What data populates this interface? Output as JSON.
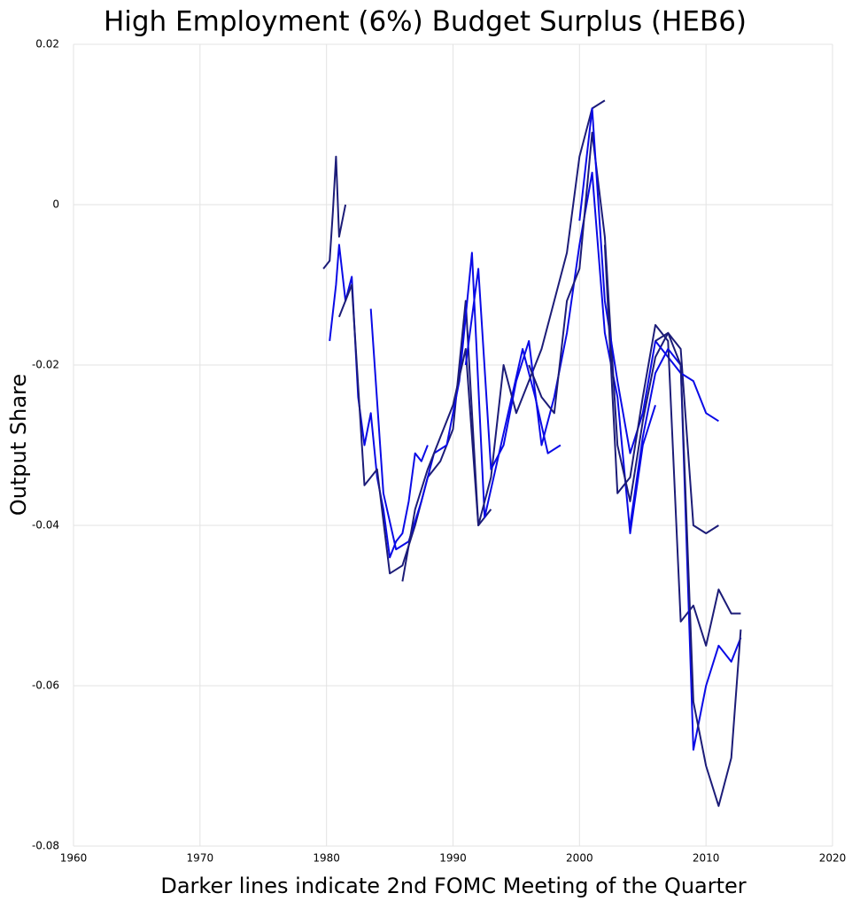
{
  "chart_data": {
    "type": "line",
    "title": "High Employment (6%) Budget Surplus (HEB6)",
    "xlabel": "Darker lines indicate 2nd FOMC Meeting of the Quarter",
    "ylabel": "Output Share",
    "xlim": [
      1960,
      2020
    ],
    "xticks": [
      1960,
      1970,
      1980,
      1990,
      2000,
      2010,
      2020
    ],
    "ylim": [
      -0.08,
      0.02
    ],
    "yticks": [
      -0.08,
      -0.06,
      -0.04,
      -0.02,
      0,
      0.02
    ],
    "grid": true,
    "series": [
      {
        "color": "#1c1c78",
        "x": [
          1979.75,
          1980.25,
          1980.5,
          1980.75,
          1981.0,
          1981.25,
          1981.5
        ],
        "values": [
          -0.008,
          -0.007,
          -0.001,
          0.006,
          -0.004,
          -0.002,
          0.0
        ]
      },
      {
        "color": "#0a0ae6",
        "x": [
          1980.25,
          1980.75,
          1981.0,
          1981.5,
          1982.0,
          1982.5,
          1983.0,
          1983.5,
          1984.0,
          1984.5,
          1985.0,
          1985.5,
          1986.0,
          1986.5,
          1987.0,
          1987.5,
          1988.0
        ],
        "values": [
          -0.017,
          -0.01,
          -0.005,
          -0.012,
          -0.009,
          -0.024,
          -0.03,
          -0.026,
          -0.034,
          -0.038,
          -0.044,
          -0.042,
          -0.041,
          -0.037,
          -0.031,
          -0.032,
          -0.03
        ]
      },
      {
        "color": "#1c1c78",
        "x": [
          1981,
          1982,
          1983,
          1984,
          1985,
          1986,
          1987,
          1988,
          1989,
          1990,
          1991,
          1992,
          1993
        ],
        "values": [
          -0.014,
          -0.01,
          -0.035,
          -0.033,
          -0.046,
          -0.045,
          -0.04,
          -0.034,
          -0.032,
          -0.028,
          -0.012,
          -0.04,
          -0.038
        ]
      },
      {
        "color": "#0a0ae6",
        "x": [
          1983.5,
          1984.5,
          1985.5,
          1986.5,
          1987.5,
          1988.5,
          1989.5,
          1990.5,
          1991.5,
          1992.5,
          1993.5,
          1994.5,
          1995.5,
          1996.5,
          1997.5,
          1998.5
        ],
        "values": [
          -0.013,
          -0.036,
          -0.043,
          -0.042,
          -0.037,
          -0.031,
          -0.03,
          -0.022,
          -0.006,
          -0.039,
          -0.032,
          -0.025,
          -0.018,
          -0.024,
          -0.031,
          -0.03
        ]
      },
      {
        "color": "#1c1c78",
        "x": [
          1986,
          1987,
          1988,
          1989,
          1990,
          1991,
          1992,
          1993,
          1994,
          1995,
          1996,
          1997,
          1998,
          1999,
          2000,
          2001,
          2002
        ],
        "values": [
          -0.047,
          -0.038,
          -0.033,
          -0.029,
          -0.025,
          -0.018,
          -0.04,
          -0.034,
          -0.02,
          -0.026,
          -0.022,
          -0.018,
          -0.012,
          -0.006,
          0.006,
          0.012,
          0.013
        ]
      },
      {
        "color": "#0a0ae6",
        "x": [
          1991,
          1992,
          1993,
          1994,
          1995,
          1996,
          1997,
          1998,
          1999,
          2000,
          2001,
          2002,
          2003,
          2004,
          2005,
          2006
        ],
        "values": [
          -0.02,
          -0.008,
          -0.033,
          -0.03,
          -0.022,
          -0.017,
          -0.03,
          -0.024,
          -0.016,
          -0.005,
          0.004,
          -0.016,
          -0.024,
          -0.041,
          -0.03,
          -0.025
        ]
      },
      {
        "color": "#1c1c78",
        "x": [
          1996,
          1997,
          1998,
          1999,
          2000,
          2001,
          2002,
          2003,
          2004,
          2005,
          2006,
          2007,
          2008,
          2009,
          2010,
          2011
        ],
        "values": [
          -0.02,
          -0.024,
          -0.026,
          -0.012,
          -0.008,
          0.009,
          -0.004,
          -0.03,
          -0.037,
          -0.027,
          -0.019,
          -0.016,
          -0.018,
          -0.04,
          -0.041,
          -0.04
        ]
      },
      {
        "color": "#0a0ae6",
        "x": [
          2000,
          2001,
          2002,
          2003,
          2004,
          2005,
          2006,
          2007,
          2008,
          2009,
          2010,
          2011
        ],
        "values": [
          -0.002,
          0.012,
          -0.012,
          -0.022,
          -0.031,
          -0.026,
          -0.017,
          -0.019,
          -0.021,
          -0.022,
          -0.026,
          -0.027
        ]
      },
      {
        "color": "#1c1c78",
        "x": [
          2002,
          2003,
          2004,
          2005,
          2006,
          2007,
          2008,
          2009,
          2010,
          2011,
          2012,
          2012.75
        ],
        "values": [
          -0.005,
          -0.036,
          -0.034,
          -0.024,
          -0.015,
          -0.017,
          -0.052,
          -0.05,
          -0.055,
          -0.048,
          -0.051,
          -0.051
        ]
      },
      {
        "color": "#0a0ae6",
        "x": [
          2004,
          2005,
          2006,
          2007,
          2008,
          2009,
          2010,
          2011,
          2012,
          2012.75
        ],
        "values": [
          -0.04,
          -0.029,
          -0.021,
          -0.018,
          -0.02,
          -0.068,
          -0.06,
          -0.055,
          -0.057,
          -0.054
        ]
      },
      {
        "color": "#1c1c78",
        "x": [
          2006,
          2007,
          2008,
          2009,
          2010,
          2011,
          2012,
          2012.75
        ],
        "values": [
          -0.017,
          -0.016,
          -0.02,
          -0.062,
          -0.07,
          -0.075,
          -0.069,
          -0.053
        ]
      }
    ]
  }
}
